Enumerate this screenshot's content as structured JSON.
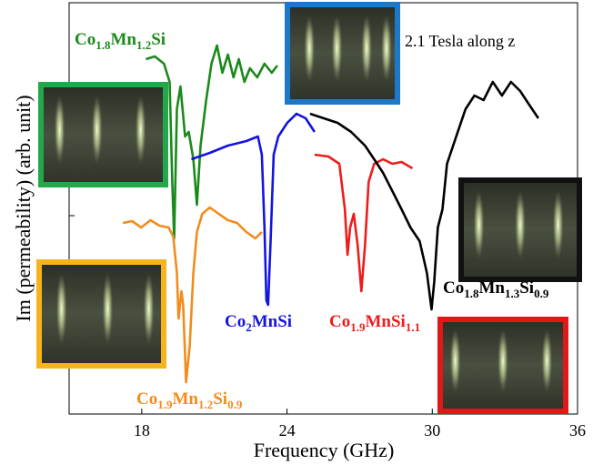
{
  "chart_data": {
    "type": "line",
    "annotation": "2.1 Tesla along z",
    "x_label": "Frequency (GHz)",
    "y_label": "Im (permeability) (arb. unit)",
    "xlim": [
      15,
      36
    ],
    "xticks": [
      18,
      24,
      30,
      36
    ],
    "ylim": [
      0,
      452
    ],
    "series": [
      {
        "name": "Co1.8Mn1.2Si",
        "color": "#1a8a1a",
        "x": [
          18.17,
          18.54,
          18.92,
          19.15,
          19.26,
          19.34,
          19.45,
          19.6,
          19.79,
          19.94,
          20.13,
          20.28,
          20.43,
          20.66,
          20.88,
          21.11,
          21.33,
          21.56,
          21.79,
          22.01,
          22.24,
          22.47,
          22.77,
          23.07,
          23.37,
          23.6
        ],
        "values": [
          390,
          393,
          385,
          365,
          255,
          193,
          335,
          360,
          305,
          310,
          280,
          230,
          295,
          345,
          385,
          405,
          375,
          395,
          370,
          390,
          365,
          380,
          370,
          385,
          375,
          383
        ]
      },
      {
        "name": "Co1.9Mn1.2Si0.9",
        "color": "#f28c1c",
        "x": [
          17.22,
          17.6,
          17.98,
          18.36,
          18.73,
          19.11,
          19.3,
          19.45,
          19.52,
          19.64,
          19.71,
          19.83,
          19.98,
          20.13,
          20.28,
          20.5,
          20.81,
          21.18,
          21.56,
          21.94,
          22.32,
          22.69,
          22.96
        ],
        "values": [
          210,
          212,
          205,
          213,
          207,
          205,
          195,
          155,
          105,
          135,
          120,
          35,
          75,
          155,
          200,
          220,
          227,
          220,
          213,
          210,
          200,
          193,
          200
        ]
      },
      {
        "name": "Co2MnSi",
        "color": "#1414e0",
        "x": [
          20.05,
          20.81,
          21.56,
          22.32,
          22.8,
          22.96,
          23.07,
          23.15,
          23.22,
          23.33,
          23.45,
          23.64,
          24.01,
          24.39,
          24.77,
          25.14
        ],
        "values": [
          280,
          287,
          295,
          300,
          305,
          285,
          205,
          125,
          120,
          195,
          285,
          305,
          320,
          330,
          325,
          310
        ]
      },
      {
        "name": "Co1.9MnSi1.1",
        "color": "#ee1c1c",
        "x": [
          25.14,
          25.71,
          26.16,
          26.39,
          26.5,
          26.61,
          26.76,
          26.92,
          27.07,
          27.22,
          27.37,
          27.6,
          27.97,
          28.35,
          28.73,
          29.18
        ],
        "values": [
          285,
          283,
          275,
          225,
          175,
          205,
          220,
          185,
          135,
          185,
          255,
          275,
          280,
          275,
          277,
          270
        ]
      },
      {
        "name": "Co1.8Mn1.3Si0.9",
        "color": "#000000",
        "x": [
          24.95,
          25.52,
          26.09,
          26.65,
          27.22,
          27.6,
          27.97,
          28.35,
          28.73,
          29.1,
          29.48,
          29.78,
          29.97,
          30.08,
          30.23,
          30.42,
          30.61,
          30.99,
          31.37,
          31.74,
          32.12,
          32.5,
          32.88,
          33.25,
          33.63,
          34.0,
          34.38
        ],
        "values": [
          330,
          325,
          320,
          310,
          295,
          280,
          265,
          245,
          225,
          205,
          190,
          155,
          115,
          145,
          205,
          225,
          275,
          305,
          335,
          350,
          345,
          365,
          350,
          365,
          355,
          340,
          325
        ]
      }
    ]
  }
}
